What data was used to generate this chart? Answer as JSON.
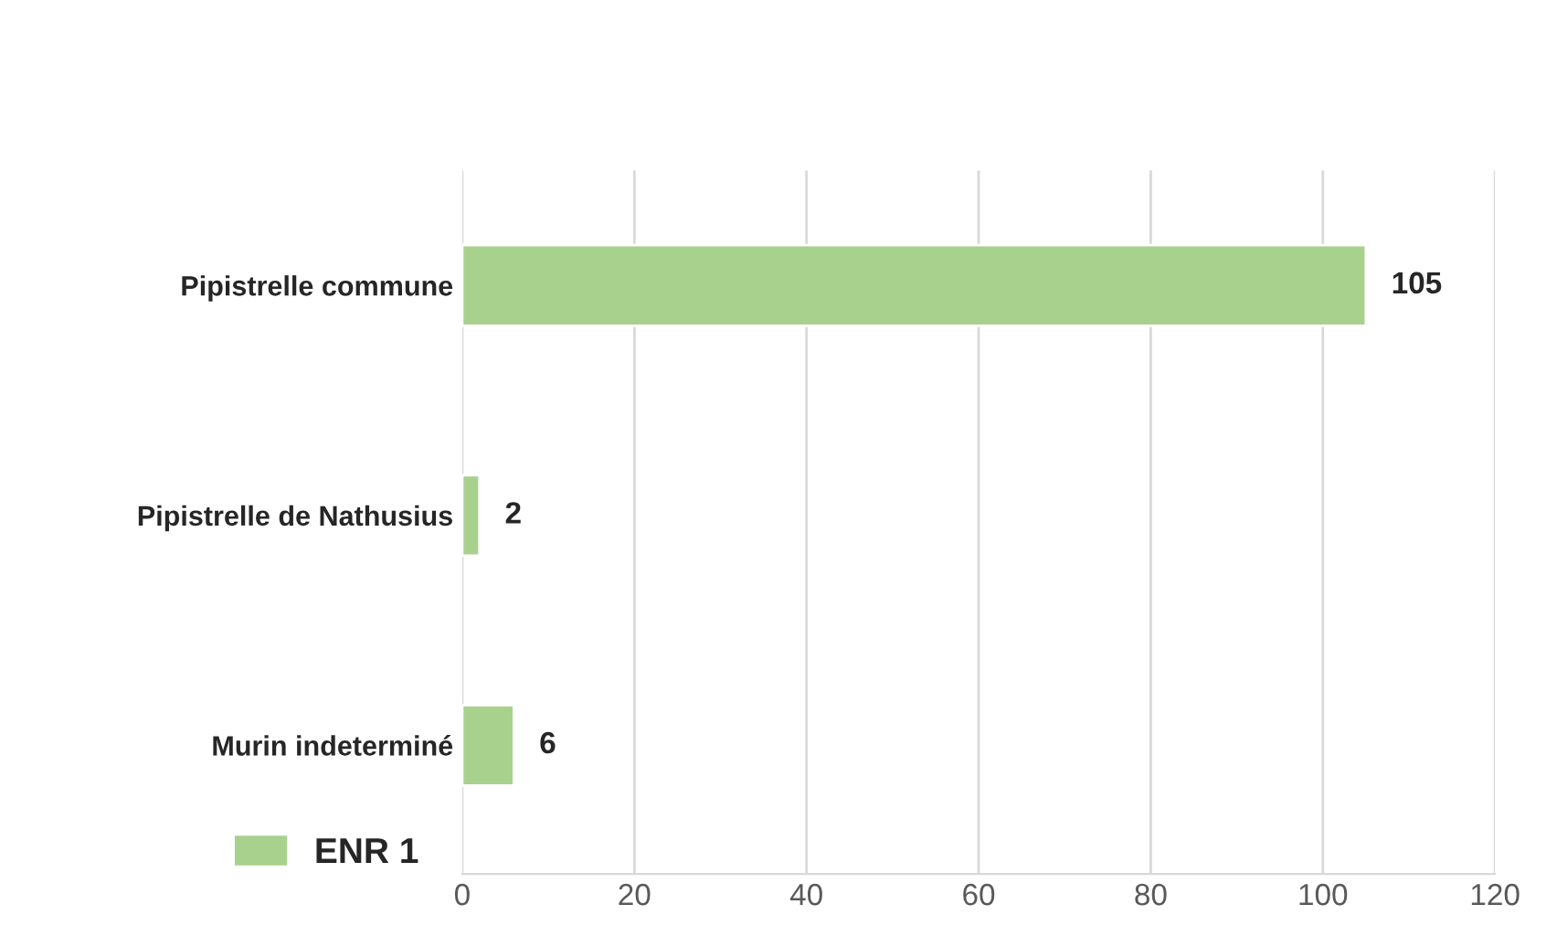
{
  "chart_data": {
    "type": "bar",
    "orientation": "horizontal",
    "categories": [
      "Pipistrelle commune",
      "Pipistrelle de Nathusius",
      "Murin indeterminé"
    ],
    "series": [
      {
        "name": "ENR 1",
        "color": "#a9d18e",
        "values": [
          105,
          2,
          6
        ]
      }
    ],
    "xlim": [
      0,
      120
    ],
    "xticks": [
      0,
      20,
      40,
      60,
      80,
      100,
      120
    ],
    "grid": "x",
    "legend": "bottom left",
    "data_labels": true
  }
}
